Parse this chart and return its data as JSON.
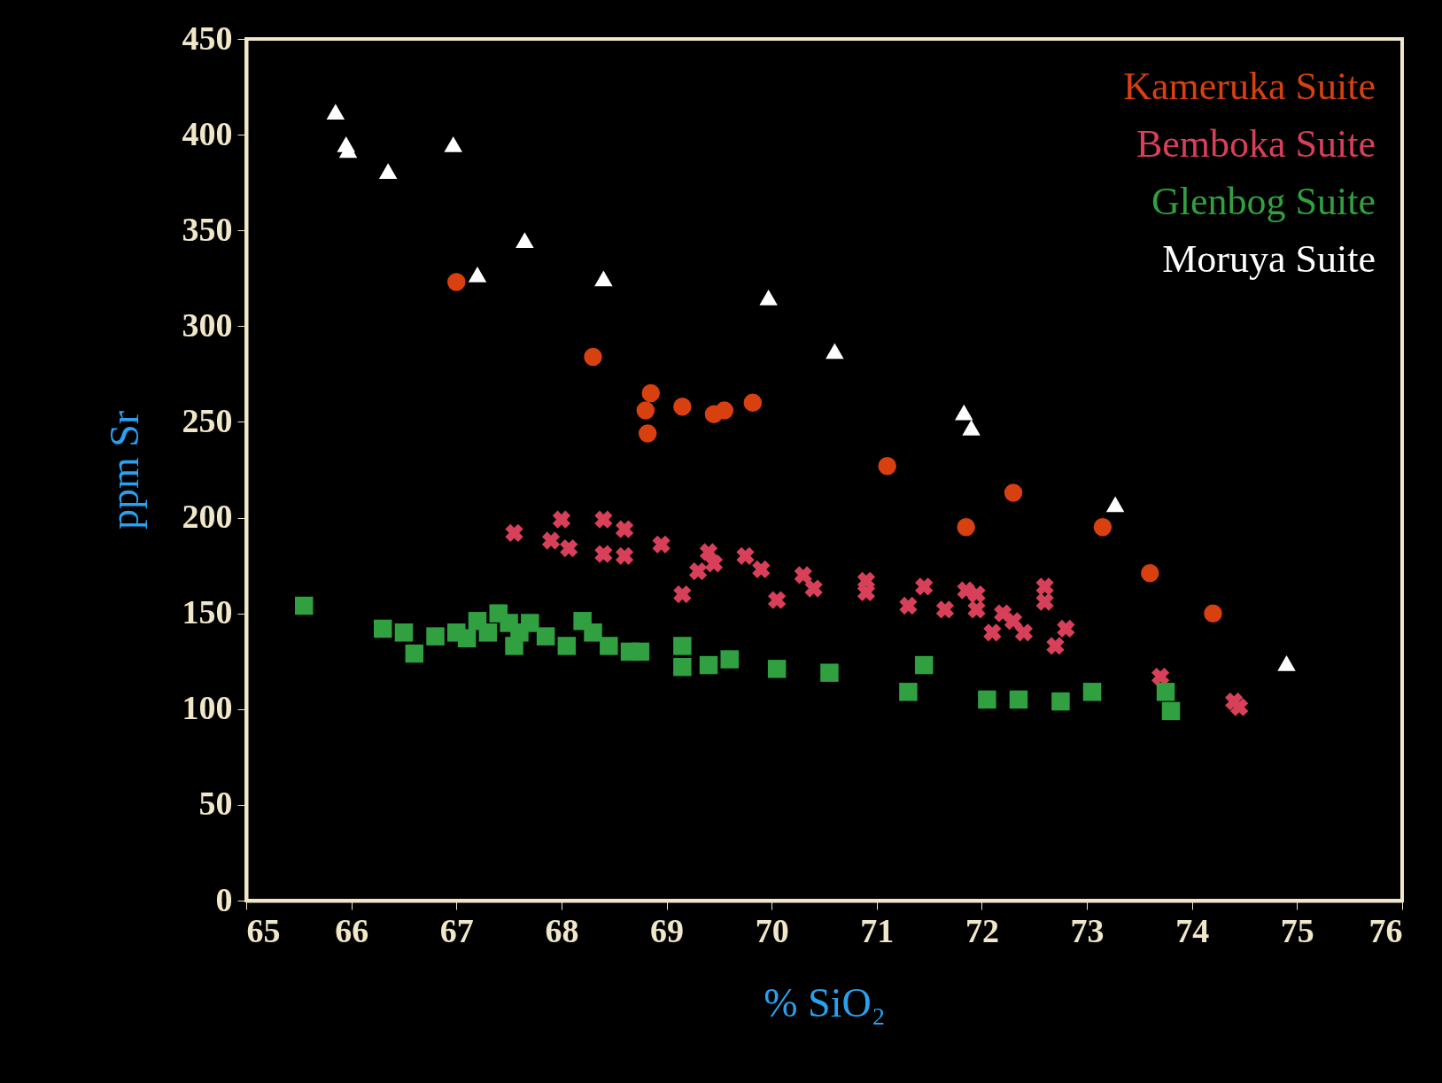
{
  "chart_data": {
    "type": "scatter",
    "xlabel": "% SiO₂",
    "ylabel": "ppm Sr",
    "xlim": [
      65,
      76
    ],
    "xticks": [
      65,
      66,
      67,
      68,
      69,
      70,
      71,
      72,
      73,
      74,
      75,
      76
    ],
    "ylim": [
      0,
      450
    ],
    "yticks": [
      0,
      50,
      100,
      150,
      200,
      250,
      300,
      350,
      400,
      450
    ],
    "grid": false,
    "legend": "top right",
    "series": [
      {
        "name": "Kameruka Suite",
        "color": "#d84010",
        "marker": "circle",
        "x": [
          67.0,
          68.3,
          68.8,
          68.85,
          68.82,
          69.15,
          69.45,
          69.55,
          69.82,
          71.1,
          71.85,
          72.3,
          73.15,
          73.6,
          74.2
        ],
        "values": [
          323,
          284,
          256,
          265,
          244,
          258,
          254,
          256,
          260,
          227,
          195,
          213,
          195,
          171,
          150
        ]
      },
      {
        "name": "Bemboka Suite",
        "color": "#d8405a",
        "marker": "cross",
        "x": [
          67.55,
          67.9,
          68.0,
          68.07,
          68.4,
          68.4,
          68.6,
          68.6,
          68.95,
          69.15,
          69.3,
          69.4,
          69.45,
          69.75,
          69.9,
          70.05,
          70.3,
          70.4,
          70.9,
          70.9,
          71.3,
          71.45,
          71.65,
          71.85,
          71.95,
          71.95,
          72.1,
          72.2,
          72.3,
          72.4,
          72.6,
          72.6,
          72.7,
          72.8,
          73.7,
          74.4,
          74.45
        ],
        "values": [
          192,
          188,
          199,
          184,
          199,
          181,
          194,
          180,
          186,
          160,
          172,
          182,
          176,
          180,
          173,
          157,
          170,
          163,
          167,
          161,
          154,
          164,
          152,
          162,
          160,
          152,
          140,
          150,
          146,
          140,
          164,
          156,
          133,
          142,
          117,
          104,
          101
        ]
      },
      {
        "name": "Glenbog Suite",
        "color": "#30a040",
        "marker": "square",
        "x": [
          65.55,
          66.3,
          66.5,
          66.6,
          66.8,
          67.0,
          67.1,
          67.2,
          67.3,
          67.4,
          67.5,
          67.55,
          67.6,
          67.7,
          67.85,
          68.05,
          68.2,
          68.3,
          68.45,
          68.65,
          68.75,
          69.15,
          69.15,
          69.4,
          69.6,
          70.05,
          70.55,
          71.3,
          71.45,
          72.05,
          72.35,
          72.75,
          73.05,
          73.75,
          73.8
        ],
        "values": [
          154,
          142,
          140,
          129,
          138,
          140,
          137,
          146,
          140,
          150,
          145,
          133,
          140,
          145,
          138,
          133,
          146,
          140,
          133,
          130,
          130,
          133,
          122,
          123,
          126,
          121,
          119,
          109,
          123,
          105,
          105,
          104,
          109,
          109,
          99
        ]
      },
      {
        "name": "Moruya Suite",
        "color": "#ffffff",
        "marker": "triangle",
        "x": [
          65.85,
          65.95,
          65.97,
          66.35,
          66.97,
          67.2,
          67.65,
          68.4,
          69.97,
          70.6,
          71.83,
          71.9,
          73.27,
          74.9
        ],
        "values": [
          412,
          395,
          392,
          381,
          395,
          327,
          345,
          325,
          315,
          287,
          255,
          247,
          207,
          124
        ]
      }
    ]
  }
}
